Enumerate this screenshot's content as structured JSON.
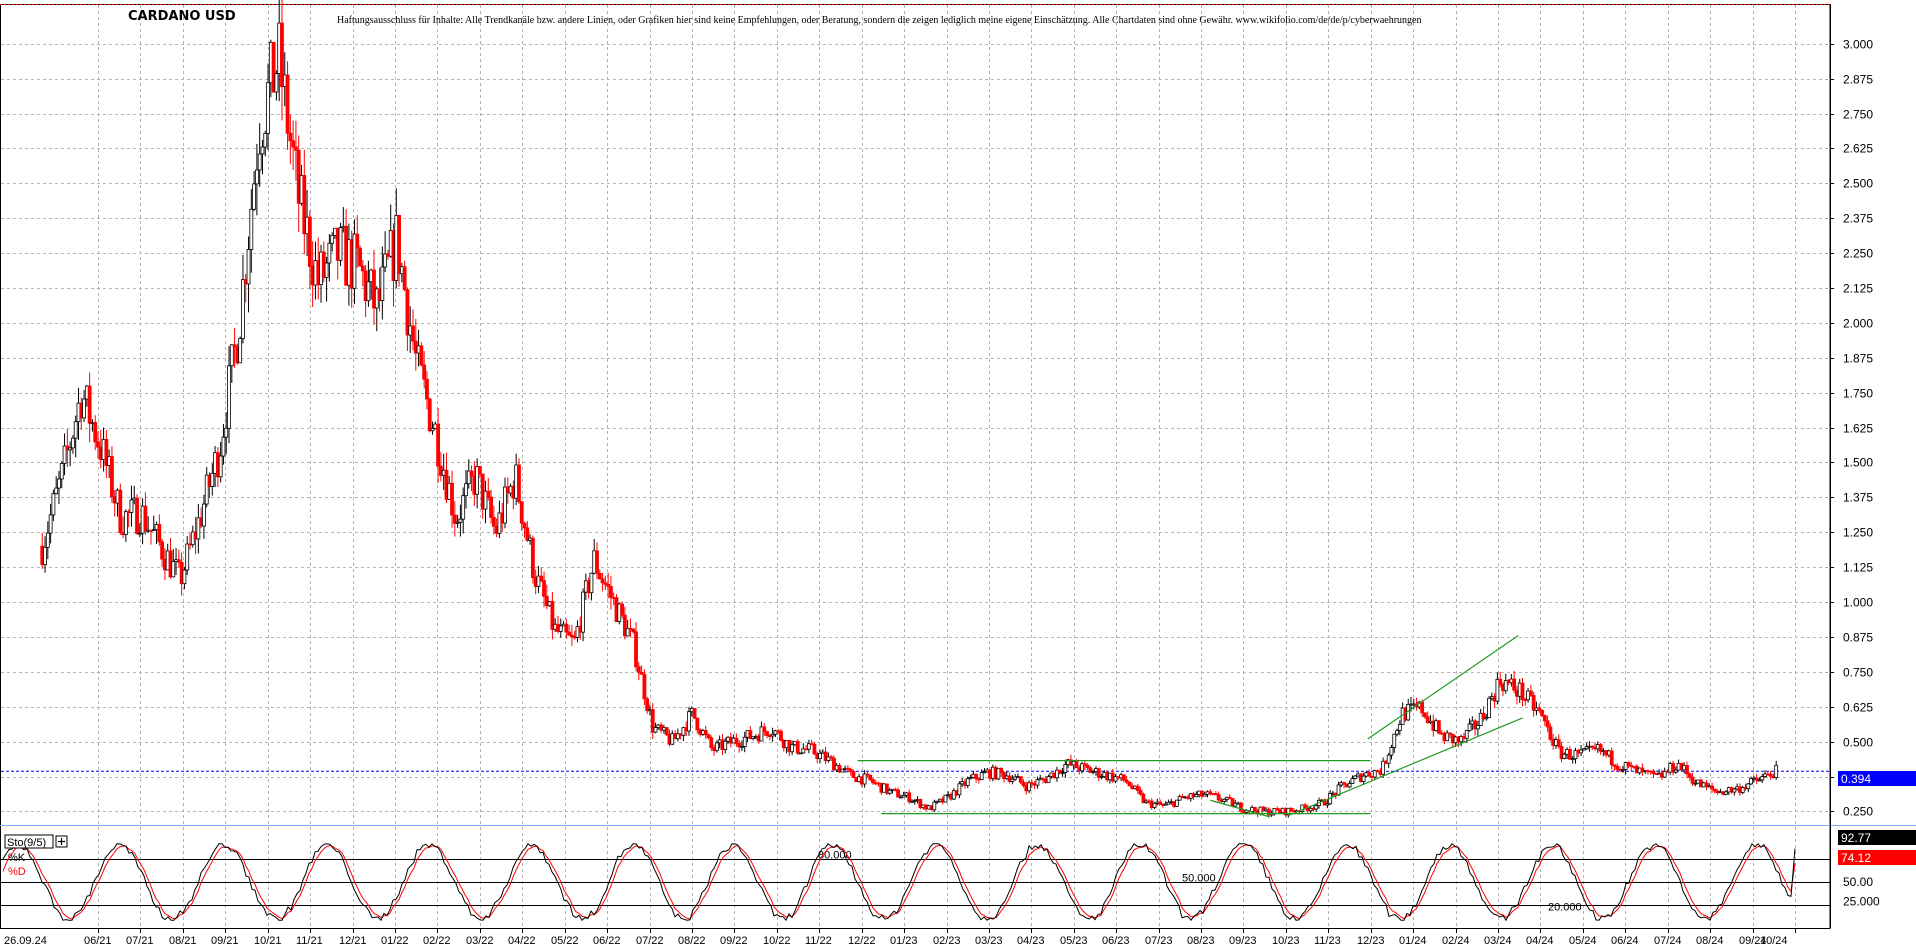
{
  "chart_data": {
    "type": "candlestick",
    "title": "CARDANO USD",
    "disclaimer": "Haftungsausschluss für Inhalte: Alle Trendkanäle bzw. andere Linien, oder Grafiken hier sind keine Empfehlungen, oder Beratung, sondern die zeigen lediglich meine eigene Einschätzung. Alle Chartdaten sind ohne Gewähr. www.wikifolio.com/de/de/p/cyberwaehrungen",
    "y_ticks": [
      "3.000",
      "2.875",
      "2.750",
      "2.625",
      "2.500",
      "2.375",
      "2.250",
      "2.125",
      "2.000",
      "1.875",
      "1.750",
      "1.625",
      "1.500",
      "1.375",
      "1.250",
      "1.125",
      "1.000",
      "0.875",
      "0.750",
      "0.625",
      "0.500",
      "0.375",
      "0.250"
    ],
    "ylim": [
      0.23,
      3.06
    ],
    "x_ticks": [
      "26.09.24",
      "06/21",
      "07/21",
      "08/21",
      "09/21",
      "10/21",
      "11/21",
      "12/21",
      "01/22",
      "02/22",
      "03/22",
      "04/22",
      "05/22",
      "06/22",
      "07/22",
      "08/22",
      "09/22",
      "10/22",
      "11/22",
      "12/22",
      "01/23",
      "02/23",
      "03/23",
      "04/23",
      "05/23",
      "06/23",
      "07/23",
      "08/23",
      "09/23",
      "10/23",
      "11/23",
      "12/23",
      "01/24",
      "02/24",
      "03/24",
      "04/24",
      "05/24",
      "06/24",
      "07/24",
      "08/24",
      "09/24",
      "10/24"
    ],
    "x_range": [
      "2021-05",
      "2024-10"
    ],
    "last_price": "0.394",
    "price_path": [
      {
        "date": "2021-05",
        "value": 1.2
      },
      {
        "date": "2021-05",
        "value": 1.45
      },
      {
        "date": "2021-05",
        "value": 1.75
      },
      {
        "date": "2021-06",
        "value": 1.55
      },
      {
        "date": "2021-06",
        "value": 1.3
      },
      {
        "date": "2021-07",
        "value": 1.32
      },
      {
        "date": "2021-07",
        "value": 1.2
      },
      {
        "date": "2021-07",
        "value": 1.08
      },
      {
        "date": "2021-08",
        "value": 1.3
      },
      {
        "date": "2021-08",
        "value": 1.55
      },
      {
        "date": "2021-08",
        "value": 2.0
      },
      {
        "date": "2021-09",
        "value": 2.7
      },
      {
        "date": "2021-09",
        "value": 2.95
      },
      {
        "date": "2021-09",
        "value": 2.45
      },
      {
        "date": "2021-10",
        "value": 2.15
      },
      {
        "date": "2021-10",
        "value": 2.25
      },
      {
        "date": "2021-10",
        "value": 2.2
      },
      {
        "date": "2021-11",
        "value": 2.05
      },
      {
        "date": "2021-11",
        "value": 2.3
      },
      {
        "date": "2021-11",
        "value": 1.85
      },
      {
        "date": "2021-12",
        "value": 1.6
      },
      {
        "date": "2021-12",
        "value": 1.3
      },
      {
        "date": "2022-01",
        "value": 1.45
      },
      {
        "date": "2022-01",
        "value": 1.25
      },
      {
        "date": "2022-02",
        "value": 1.45
      },
      {
        "date": "2022-02",
        "value": 1.1
      },
      {
        "date": "2022-03",
        "value": 0.9
      },
      {
        "date": "2022-03",
        "value": 0.85
      },
      {
        "date": "2022-04",
        "value": 1.15
      },
      {
        "date": "2022-04",
        "value": 1.0
      },
      {
        "date": "2022-05",
        "value": 0.85
      },
      {
        "date": "2022-05",
        "value": 0.55
      },
      {
        "date": "2022-06",
        "value": 0.5
      },
      {
        "date": "2022-06",
        "value": 0.6
      },
      {
        "date": "2022-07",
        "value": 0.47
      },
      {
        "date": "2022-07",
        "value": 0.5
      },
      {
        "date": "2022-08",
        "value": 0.52
      },
      {
        "date": "2022-08",
        "value": 0.55
      },
      {
        "date": "2022-09",
        "value": 0.48
      },
      {
        "date": "2022-09",
        "value": 0.47
      },
      {
        "date": "2022-10",
        "value": 0.43
      },
      {
        "date": "2022-10",
        "value": 0.38
      },
      {
        "date": "2022-11",
        "value": 0.36
      },
      {
        "date": "2022-11",
        "value": 0.32
      },
      {
        "date": "2022-12",
        "value": 0.3
      },
      {
        "date": "2022-12",
        "value": 0.26
      },
      {
        "date": "2023-01",
        "value": 0.3
      },
      {
        "date": "2023-01",
        "value": 0.36
      },
      {
        "date": "2023-02",
        "value": 0.39
      },
      {
        "date": "2023-02",
        "value": 0.38
      },
      {
        "date": "2023-03",
        "value": 0.34
      },
      {
        "date": "2023-03",
        "value": 0.37
      },
      {
        "date": "2023-04",
        "value": 0.42
      },
      {
        "date": "2023-04",
        "value": 0.4
      },
      {
        "date": "2023-05",
        "value": 0.38
      },
      {
        "date": "2023-05",
        "value": 0.36
      },
      {
        "date": "2023-06",
        "value": 0.28
      },
      {
        "date": "2023-06",
        "value": 0.27
      },
      {
        "date": "2023-07",
        "value": 0.3
      },
      {
        "date": "2023-07",
        "value": 0.31
      },
      {
        "date": "2023-08",
        "value": 0.29
      },
      {
        "date": "2023-08",
        "value": 0.26
      },
      {
        "date": "2023-09",
        "value": 0.25
      },
      {
        "date": "2023-09",
        "value": 0.25
      },
      {
        "date": "2023-10",
        "value": 0.26
      },
      {
        "date": "2023-10",
        "value": 0.28
      },
      {
        "date": "2023-11",
        "value": 0.34
      },
      {
        "date": "2023-11",
        "value": 0.38
      },
      {
        "date": "2023-12",
        "value": 0.4
      },
      {
        "date": "2023-12",
        "value": 0.6
      },
      {
        "date": "2024-01",
        "value": 0.62
      },
      {
        "date": "2024-01",
        "value": 0.52
      },
      {
        "date": "2024-02",
        "value": 0.5
      },
      {
        "date": "2024-02",
        "value": 0.58
      },
      {
        "date": "2024-03",
        "value": 0.72
      },
      {
        "date": "2024-03",
        "value": 0.68
      },
      {
        "date": "2024-04",
        "value": 0.6
      },
      {
        "date": "2024-04",
        "value": 0.46
      },
      {
        "date": "2024-05",
        "value": 0.45
      },
      {
        "date": "2024-05",
        "value": 0.47
      },
      {
        "date": "2024-06",
        "value": 0.42
      },
      {
        "date": "2024-06",
        "value": 0.39
      },
      {
        "date": "2024-07",
        "value": 0.37
      },
      {
        "date": "2024-07",
        "value": 0.42
      },
      {
        "date": "2024-08",
        "value": 0.35
      },
      {
        "date": "2024-08",
        "value": 0.32
      },
      {
        "date": "2024-09",
        "value": 0.33
      },
      {
        "date": "2024-09",
        "value": 0.36
      },
      {
        "date": "2024-10",
        "value": 0.394
      }
    ],
    "trend_lines": [
      {
        "x1": "2022-12-12",
        "y1": 0.432,
        "x2": "2023-12-15",
        "y2": 0.432
      },
      {
        "x1": "2022-12-29",
        "y1": 0.242,
        "x2": "2023-12-15",
        "y2": 0.242
      },
      {
        "x1": "2023-12-13",
        "y1": 0.51,
        "x2": "2024-03-30",
        "y2": 0.88
      },
      {
        "x1": "2023-10-17",
        "y1": 0.235,
        "x2": "2024-04-02",
        "y2": 0.585
      },
      {
        "x1": "2023-08-22",
        "y1": 0.29,
        "x2": "2023-10-04",
        "y2": 0.23
      }
    ],
    "indicator": {
      "name": "Sto(9/5)",
      "k_label": "%K",
      "d_label": "%D",
      "k_value": "92.77",
      "d_value": "74.12",
      "ylim": [
        0,
        100
      ],
      "levels": [
        {
          "value": 80,
          "label": "80.000"
        },
        {
          "value": 50,
          "label": "50.000"
        },
        {
          "value": 20,
          "label": "20.000"
        }
      ],
      "axis_ticks": [
        "50.00",
        "25.000"
      ]
    },
    "colors": {
      "bull": "#000000",
      "bear": "#ff0000",
      "grid": "#b4b4b4",
      "trend": "#1e9b1e",
      "last_price_line": "#0000ff",
      "stoch_k": "#000000",
      "stoch_d": "#ff0000",
      "badge_last": "#0000ff",
      "badge_k": "#000000",
      "badge_d": "#ff0000"
    }
  }
}
